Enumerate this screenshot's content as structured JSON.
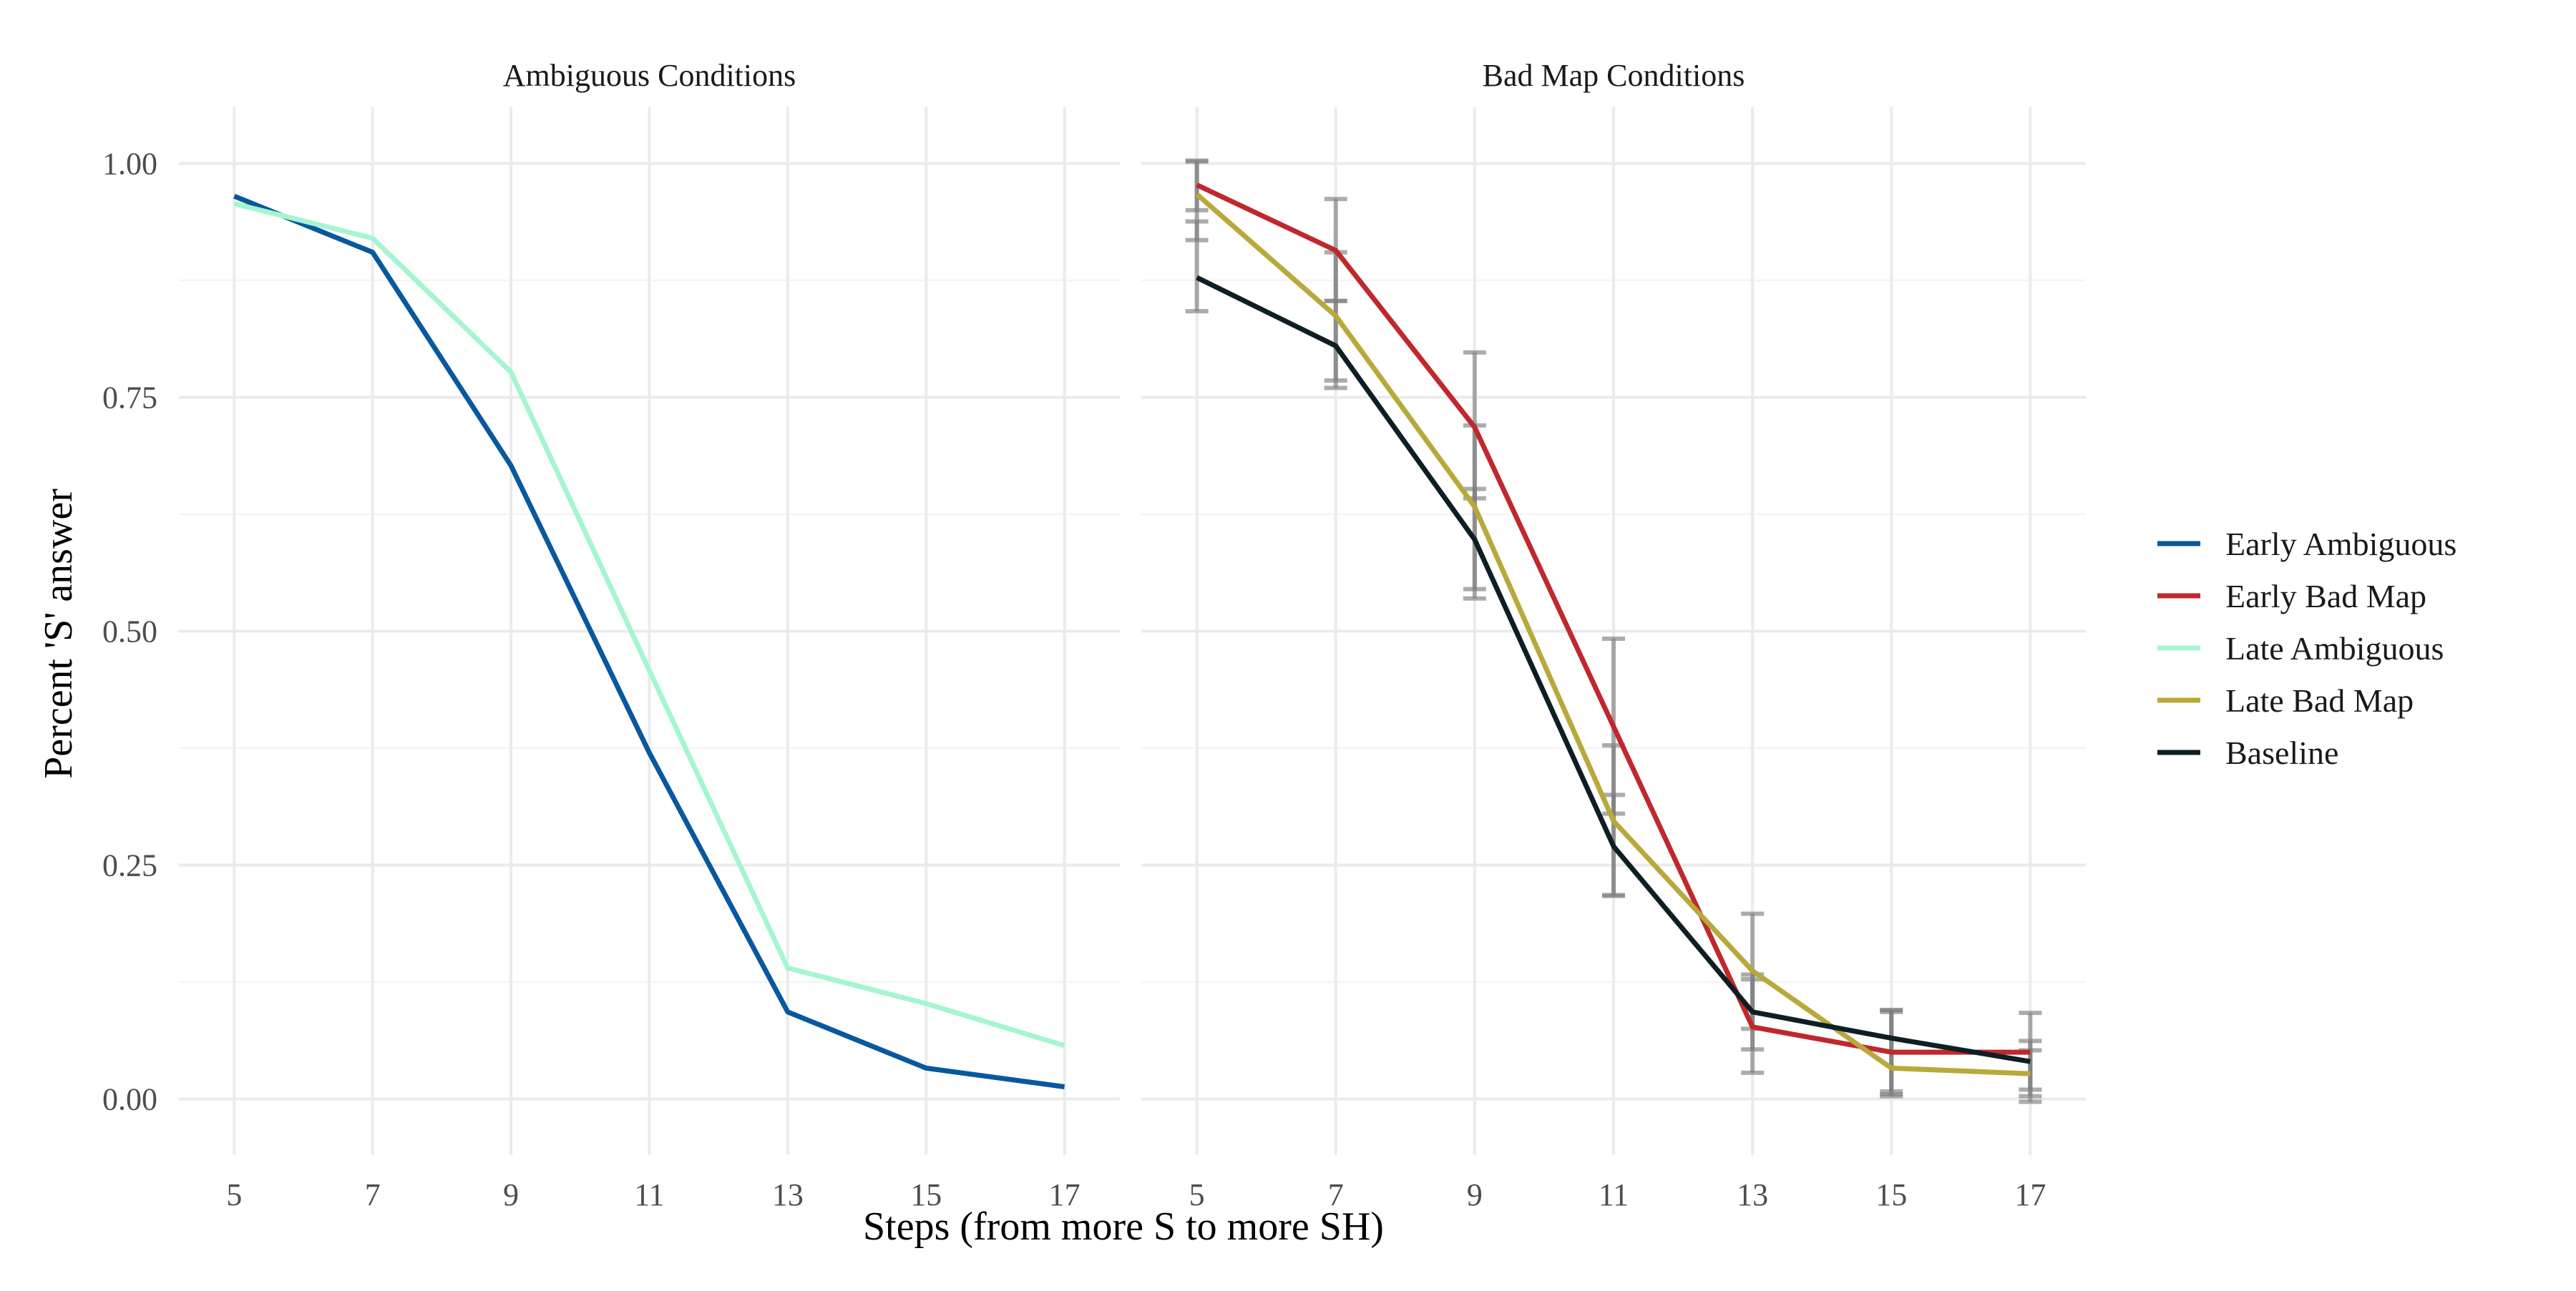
{
  "chart_data": {
    "type": "line",
    "facets": [
      {
        "title": "Ambiguous Conditions",
        "series": [
          {
            "name": "Early Ambiguous",
            "color": "#08589e",
            "x": [
              5,
              7,
              9,
              11,
              13,
              15,
              17
            ],
            "y": [
              0.965,
              0.905,
              0.677,
              0.37,
              0.093,
              0.033,
              0.013
            ]
          },
          {
            "name": "Late Ambiguous",
            "color": "#a5f6d0",
            "x": [
              5,
              7,
              9,
              11,
              13,
              15,
              17
            ],
            "y": [
              0.957,
              0.92,
              0.777,
              0.458,
              0.14,
              0.102,
              0.057
            ]
          }
        ]
      },
      {
        "title": "Bad Map Conditions",
        "series": [
          {
            "name": "Early Bad Map",
            "color": "#c0282e",
            "x": [
              5,
              7,
              9,
              11,
              13,
              15,
              17
            ],
            "y": [
              0.977,
              0.907,
              0.718,
              0.398,
              0.077,
              0.05,
              0.05
            ],
            "err_low": [
              0.95,
              0.853,
              0.642,
              0.305,
              0.053,
              0.008,
              0.01
            ],
            "err_high": [
              1.003,
              0.962,
              0.798,
              0.492,
              0.133,
              0.093,
              0.092
            ]
          },
          {
            "name": "Late Bad Map",
            "color": "#b8a93a",
            "x": [
              5,
              7,
              9,
              11,
              13,
              15,
              17
            ],
            "y": [
              0.967,
              0.837,
              0.633,
              0.297,
              0.137,
              0.033,
              0.027
            ],
            "err_low": [
              0.918,
              0.768,
              0.545,
              0.217,
              0.075,
              0.003,
              0.003
            ],
            "err_high": [
              1.002,
              0.905,
              0.72,
              0.378,
              0.198,
              0.095,
              0.062
            ]
          },
          {
            "name": "Baseline",
            "color": "#0d1f24",
            "x": [
              5,
              7,
              9,
              11,
              13,
              15,
              17
            ],
            "y": [
              0.878,
              0.805,
              0.598,
              0.27,
              0.093,
              0.065,
              0.04
            ],
            "err_low": [
              0.842,
              0.76,
              0.535,
              0.218,
              0.028,
              0.005,
              -0.003
            ],
            "err_high": [
              0.938,
              0.853,
              0.652,
              0.325,
              0.128,
              0.095,
              0.052
            ]
          }
        ]
      }
    ],
    "legend_order": [
      "Early Ambiguous",
      "Early Bad Map",
      "Late Ambiguous",
      "Late Bad Map",
      "Baseline"
    ],
    "legend_position": "right",
    "xlabel": "Steps (from more S to more SH)",
    "ylabel": "Percent 'S' answer",
    "x_ticks": [
      5,
      7,
      9,
      11,
      13,
      15,
      17
    ],
    "y_ticks": [
      0,
      0.25,
      0.5,
      0.75,
      1.0
    ],
    "y_tick_labels": [
      "0.00",
      "0.25",
      "0.50",
      "0.75",
      "1.00"
    ],
    "ylim": [
      -0.06,
      1.06
    ],
    "xlim": [
      4.2,
      17.8
    ],
    "grid": true,
    "errorbar_color": "#808080"
  }
}
